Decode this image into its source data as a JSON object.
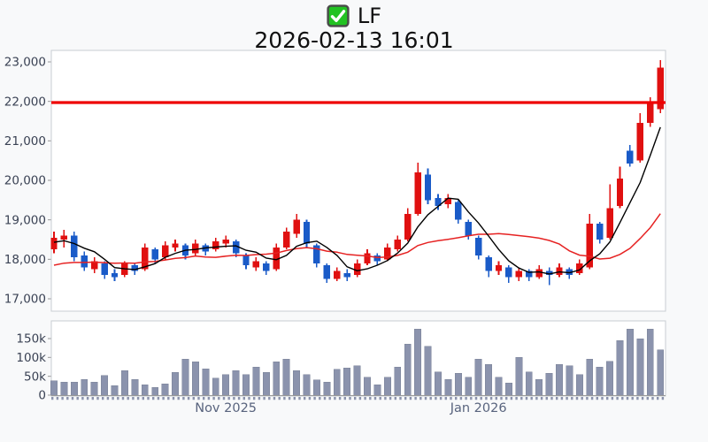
{
  "title": {
    "symbol": "LF",
    "timestamp": "2026-02-13 16:01",
    "checkbox_icon": "checked-checkbox"
  },
  "colors": {
    "up_candle": "#e01010",
    "down_candle": "#1a5bc8",
    "ma_fast": "#000000",
    "ma_slow": "#e62222",
    "alert_line": "#ee0000",
    "volume_bar": "#8b93ad",
    "volume_bar_edge": "#7b8398",
    "axis_text": "#3a4254",
    "x_label_text": "#59647e",
    "panel_border": "#c9cdd3",
    "panel_bg": "#ffffff",
    "page_bg": "#f8f9fa",
    "checkbox_green": "#22c222",
    "checkbox_border": "#4a4a4a",
    "title_text": "#111111",
    "axis_line": "#999999"
  },
  "chart_data": {
    "type": "candlestick+volume",
    "title": "LF",
    "subtitle": "2026-02-13 16:01",
    "price_axis": {
      "ticks": [
        23000,
        22000,
        21000,
        20000,
        19000,
        18000,
        17000
      ],
      "tick_labels": [
        "23,000",
        "22,000",
        "21,000",
        "20,000",
        "19,000",
        "18,000",
        "17,000"
      ],
      "range": [
        16690,
        23290
      ]
    },
    "volume_axis": {
      "ticks_k": [
        150,
        100,
        50,
        0
      ],
      "tick_labels": [
        "150k",
        "100k",
        "50k",
        "0"
      ],
      "range_k": [
        0,
        200
      ]
    },
    "x_axis": {
      "labels": [
        {
          "text": "Nov 2025",
          "candle_index": 17
        },
        {
          "text": "Jan 2026",
          "candle_index": 42
        }
      ]
    },
    "alert_line": {
      "price": 21970
    },
    "moving_averages": [
      {
        "name": "ma-fast",
        "period": 5,
        "seed": 18400
      },
      {
        "name": "ma-slow",
        "period": 15,
        "seed": 17800
      }
    ],
    "candles_format": [
      "open",
      "high",
      "low",
      "close",
      "volume_k"
    ],
    "candles": [
      [
        18250,
        18700,
        18150,
        18550,
        38
      ],
      [
        18500,
        18750,
        18300,
        18600,
        35
      ],
      [
        18600,
        18700,
        17950,
        18050,
        35
      ],
      [
        18100,
        18200,
        17700,
        17800,
        42
      ],
      [
        17750,
        18050,
        17650,
        17950,
        35
      ],
      [
        17900,
        17950,
        17500,
        17600,
        52
      ],
      [
        17650,
        17750,
        17450,
        17550,
        25
      ],
      [
        17600,
        17950,
        17550,
        17900,
        65
      ],
      [
        17850,
        17900,
        17600,
        17700,
        42
      ],
      [
        17750,
        18400,
        17700,
        18300,
        28
      ],
      [
        18250,
        18300,
        17900,
        18000,
        20
      ],
      [
        18050,
        18450,
        18000,
        18350,
        30
      ],
      [
        18300,
        18500,
        18200,
        18400,
        60
      ],
      [
        18350,
        18400,
        18000,
        18100,
        95
      ],
      [
        18150,
        18500,
        18100,
        18400,
        88
      ],
      [
        18350,
        18400,
        18100,
        18200,
        70
      ],
      [
        18250,
        18550,
        18200,
        18450,
        45
      ],
      [
        18400,
        18600,
        18300,
        18500,
        55
      ],
      [
        18450,
        18500,
        18050,
        18150,
        65
      ],
      [
        18100,
        18150,
        17750,
        17850,
        55
      ],
      [
        17800,
        18050,
        17700,
        17950,
        75
      ],
      [
        17900,
        17950,
        17600,
        17700,
        60
      ],
      [
        17750,
        18400,
        17700,
        18300,
        88
      ],
      [
        18300,
        18800,
        18250,
        18700,
        95
      ],
      [
        18650,
        19150,
        18550,
        19000,
        65
      ],
      [
        18950,
        19000,
        18300,
        18400,
        55
      ],
      [
        18350,
        18400,
        17800,
        17900,
        40
      ],
      [
        17850,
        17900,
        17400,
        17500,
        35
      ],
      [
        17500,
        17800,
        17450,
        17700,
        68
      ],
      [
        17650,
        17750,
        17450,
        17550,
        72
      ],
      [
        17600,
        18000,
        17550,
        17900,
        78
      ],
      [
        17900,
        18250,
        17850,
        18150,
        48
      ],
      [
        18100,
        18150,
        17850,
        17950,
        28
      ],
      [
        18000,
        18400,
        17950,
        18300,
        48
      ],
      [
        18250,
        18600,
        18200,
        18500,
        75
      ],
      [
        18500,
        19300,
        18450,
        19150,
        135
      ],
      [
        19150,
        20450,
        19100,
        20200,
        175
      ],
      [
        20150,
        20300,
        19400,
        19500,
        130
      ],
      [
        19550,
        19650,
        19250,
        19350,
        62
      ],
      [
        19400,
        19650,
        19300,
        19550,
        42
      ],
      [
        19450,
        19500,
        18900,
        19000,
        58
      ],
      [
        18950,
        19000,
        18500,
        18600,
        48
      ],
      [
        18550,
        18600,
        18000,
        18100,
        95
      ],
      [
        18050,
        18100,
        17550,
        17700,
        82
      ],
      [
        17700,
        17950,
        17600,
        17850,
        48
      ],
      [
        17800,
        17850,
        17400,
        17550,
        32
      ],
      [
        17550,
        17800,
        17450,
        17700,
        100
      ],
      [
        17700,
        17750,
        17450,
        17550,
        62
      ],
      [
        17550,
        17850,
        17500,
        17750,
        42
      ],
      [
        17700,
        17800,
        17350,
        17600,
        58
      ],
      [
        17600,
        17900,
        17550,
        17800,
        82
      ],
      [
        17750,
        17800,
        17500,
        17600,
        78
      ],
      [
        17650,
        18000,
        17600,
        17900,
        55
      ],
      [
        17800,
        19150,
        17750,
        18900,
        95
      ],
      [
        18900,
        18950,
        18400,
        18500,
        75
      ],
      [
        18550,
        19900,
        18500,
        19300,
        90
      ],
      [
        19350,
        20350,
        19300,
        20050,
        145
      ],
      [
        20750,
        20900,
        20350,
        20430,
        175
      ],
      [
        20500,
        21700,
        20450,
        21450,
        150
      ],
      [
        21450,
        22100,
        21350,
        21950,
        175
      ],
      [
        21800,
        23050,
        21700,
        22850,
        120
      ]
    ]
  }
}
